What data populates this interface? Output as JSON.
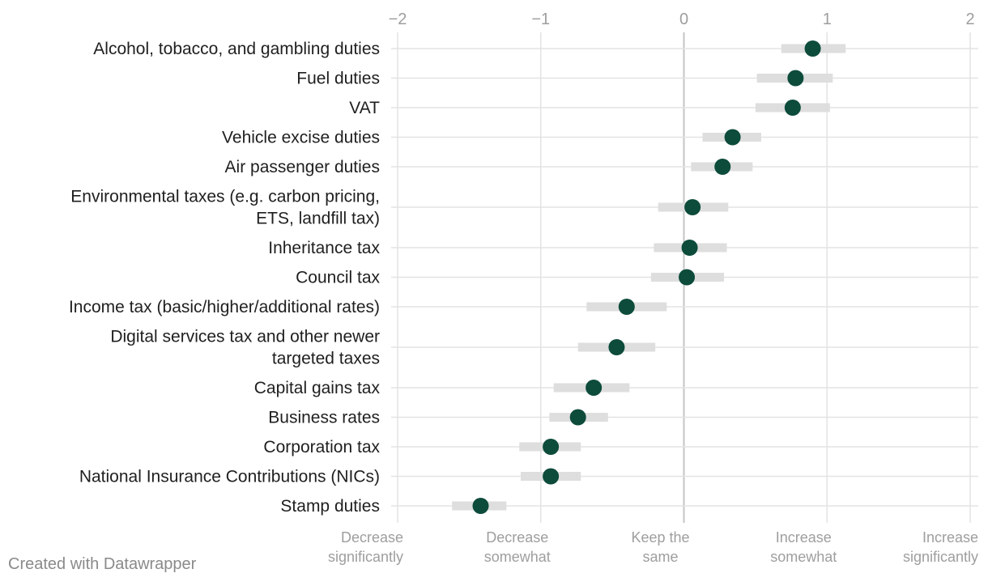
{
  "chart_data": {
    "type": "dot-range",
    "x_axis": {
      "min": -2,
      "max": 2,
      "ticks": [
        {
          "value": -2,
          "label": "−2"
        },
        {
          "value": -1,
          "label": "−1"
        },
        {
          "value": 0,
          "label": "0"
        },
        {
          "value": 1,
          "label": "1"
        },
        {
          "value": 2,
          "label": "2"
        }
      ],
      "scale_labels": [
        {
          "value": -2,
          "lines": [
            "Decrease",
            "significantly"
          ]
        },
        {
          "value": -1,
          "lines": [
            "Decrease",
            "somewhat"
          ]
        },
        {
          "value": 0,
          "lines": [
            "Keep the",
            "same"
          ]
        },
        {
          "value": 1,
          "lines": [
            "Increase",
            "somewhat"
          ]
        },
        {
          "value": 2,
          "lines": [
            "Increase",
            "significantly"
          ]
        }
      ]
    },
    "rows": [
      {
        "lines": [
          "Alcohol, tobacco, and gambling duties"
        ],
        "mean": 0.9,
        "low": 0.68,
        "high": 1.13
      },
      {
        "lines": [
          "Fuel duties"
        ],
        "mean": 0.78,
        "low": 0.51,
        "high": 1.04
      },
      {
        "lines": [
          "VAT"
        ],
        "mean": 0.76,
        "low": 0.5,
        "high": 1.02
      },
      {
        "lines": [
          "Vehicle excise duties"
        ],
        "mean": 0.34,
        "low": 0.13,
        "high": 0.54
      },
      {
        "lines": [
          "Air passenger duties"
        ],
        "mean": 0.27,
        "low": 0.05,
        "high": 0.48
      },
      {
        "lines": [
          "Environmental taxes (e.g. carbon pricing,",
          "ETS, landfill tax)"
        ],
        "mean": 0.06,
        "low": -0.18,
        "high": 0.31
      },
      {
        "lines": [
          "Inheritance tax"
        ],
        "mean": 0.04,
        "low": -0.21,
        "high": 0.3
      },
      {
        "lines": [
          "Council tax"
        ],
        "mean": 0.02,
        "low": -0.23,
        "high": 0.28
      },
      {
        "lines": [
          "Income tax (basic/higher/additional rates)"
        ],
        "mean": -0.4,
        "low": -0.68,
        "high": -0.12
      },
      {
        "lines": [
          "Digital services tax and other newer",
          "targeted taxes"
        ],
        "mean": -0.47,
        "low": -0.74,
        "high": -0.2
      },
      {
        "lines": [
          "Capital gains tax"
        ],
        "mean": -0.63,
        "low": -0.91,
        "high": -0.38
      },
      {
        "lines": [
          "Business rates"
        ],
        "mean": -0.74,
        "low": -0.94,
        "high": -0.53
      },
      {
        "lines": [
          "Corporation tax"
        ],
        "mean": -0.93,
        "low": -1.15,
        "high": -0.72
      },
      {
        "lines": [
          "National Insurance Contributions (NICs)"
        ],
        "mean": -0.93,
        "low": -1.14,
        "high": -0.72
      },
      {
        "lines": [
          "Stamp duties"
        ],
        "mean": -1.42,
        "low": -1.62,
        "high": -1.24
      }
    ],
    "colors": {
      "dot": "#0d4b3b",
      "range": "#dedede",
      "grid": "#e3e3e3",
      "zero_line": "#c4c4c4"
    }
  },
  "footer": {
    "credit": "Created with Datawrapper"
  }
}
